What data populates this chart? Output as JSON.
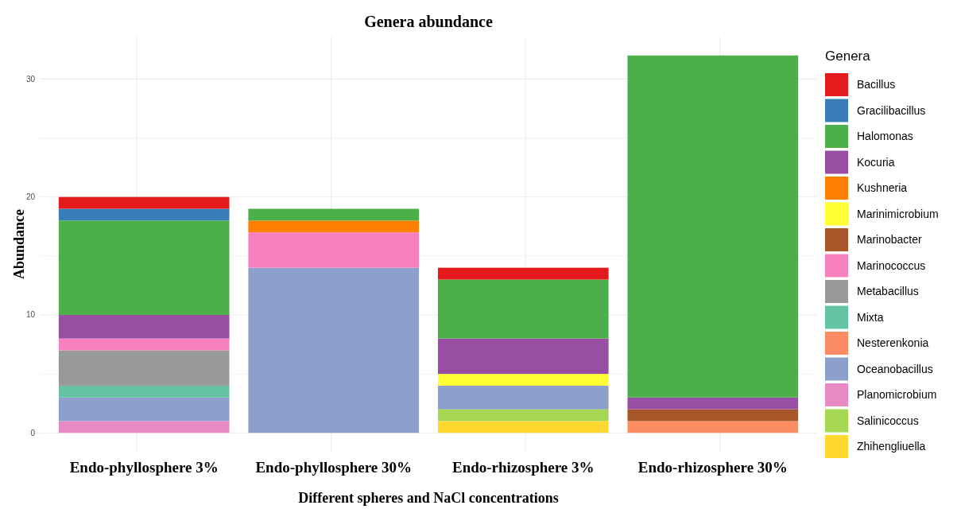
{
  "chart_data": {
    "type": "bar",
    "title": "Genera abundance",
    "xlabel": "Different spheres and NaCl concentrations",
    "ylabel": "Abundance",
    "legend_title": "Genera",
    "stacked": true,
    "grid": true,
    "legend": "right",
    "categories": [
      "Endo-phyllosphere 3%",
      "Endo-phyllosphere 30%",
      "Endo-rhizosphere 3%",
      "Endo-rhizosphere 30%"
    ],
    "ylim": [
      -1.6,
      33.6
    ],
    "yticks": [
      0,
      {
        "value": 5,
        "label": null
      },
      10,
      {
        "value": 15,
        "label": null
      },
      20,
      {
        "value": 25,
        "label": null
      },
      30
    ],
    "series": [
      {
        "name": "Zhihengliuella",
        "color": "#ffd92f",
        "values": [
          null,
          null,
          1,
          null
        ]
      },
      {
        "name": "Salinicoccus",
        "color": "#a6d854",
        "values": [
          null,
          null,
          1,
          null
        ]
      },
      {
        "name": "Planomicrobium",
        "color": "#e78ac3",
        "values": [
          1,
          null,
          null,
          null
        ]
      },
      {
        "name": "Oceanobacillus",
        "color": "#8da0cb",
        "values": [
          2,
          14,
          2,
          null
        ]
      },
      {
        "name": "Nesterenkonia",
        "color": "#fc8d62",
        "values": [
          null,
          null,
          null,
          1
        ]
      },
      {
        "name": "Mixta",
        "color": "#66c2a5",
        "values": [
          1,
          null,
          null,
          null
        ]
      },
      {
        "name": "Metabacillus",
        "color": "#999999",
        "values": [
          3,
          null,
          null,
          null
        ]
      },
      {
        "name": "Marinococcus",
        "color": "#f781bf",
        "values": [
          1,
          3,
          null,
          null
        ]
      },
      {
        "name": "Marinobacter",
        "color": "#a65628",
        "values": [
          null,
          null,
          null,
          1
        ]
      },
      {
        "name": "Marinimicrobium",
        "color": "#ffff33",
        "values": [
          null,
          null,
          1,
          null
        ]
      },
      {
        "name": "Kushneria",
        "color": "#ff7f00",
        "values": [
          null,
          1,
          null,
          null
        ]
      },
      {
        "name": "Kocuria",
        "color": "#984ea3",
        "values": [
          2,
          null,
          3,
          1
        ]
      },
      {
        "name": "Halomonas",
        "color": "#4daf4a",
        "values": [
          8,
          1,
          5,
          29
        ]
      },
      {
        "name": "Gracilibacillus",
        "color": "#377eb8",
        "values": [
          1,
          null,
          null,
          null
        ]
      },
      {
        "name": "Bacillus",
        "color": "#e41a1c",
        "values": [
          1,
          null,
          1,
          null
        ]
      }
    ]
  }
}
